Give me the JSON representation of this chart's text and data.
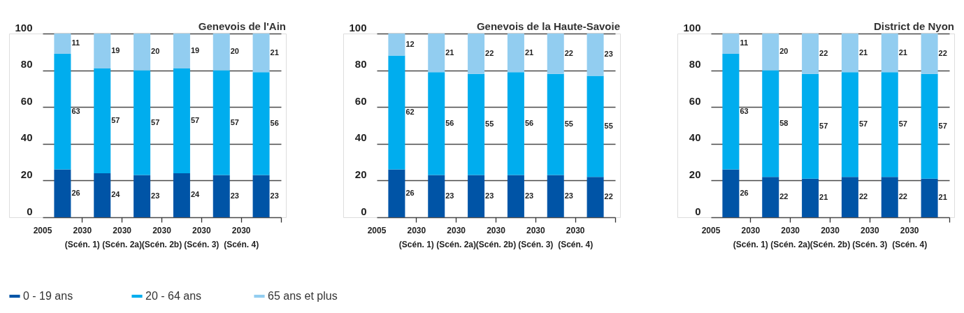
{
  "chart_data": [
    {
      "type": "bar",
      "title": "Genevois de l'Ain",
      "stacked": true,
      "categories": [
        "2005",
        "2030\n(Scén. 1)",
        "2030\n(Scén. 2a)",
        "2030\n(Scén. 2b)",
        "2030\n(Scén. 3)",
        "2030\n(Scén. 4)"
      ],
      "series": [
        {
          "name": "0 - 19 ans",
          "color": "#0054a6",
          "values": [
            26,
            24,
            23,
            24,
            23,
            23
          ]
        },
        {
          "name": "20 - 64 ans",
          "color": "#00adee",
          "values": [
            63,
            57,
            57,
            57,
            57,
            56
          ]
        },
        {
          "name": "65 ans et plus",
          "color": "#92cdf0",
          "values": [
            11,
            19,
            20,
            19,
            20,
            21
          ]
        }
      ],
      "ylim": [
        0,
        100
      ],
      "yticks": [
        0,
        20,
        40,
        60,
        80,
        100
      ],
      "grid": "y",
      "data_labels": true,
      "legend": "bottom"
    },
    {
      "type": "bar",
      "title": "Genevois de la Haute-Savoie",
      "stacked": true,
      "categories": [
        "2005",
        "2030\n(Scén. 1)",
        "2030\n(Scén. 2a)",
        "2030\n(Scén. 2b)",
        "2030\n(Scén. 3)",
        "2030\n(Scén. 4)"
      ],
      "series": [
        {
          "name": "0 - 19 ans",
          "color": "#0054a6",
          "values": [
            26,
            23,
            23,
            23,
            23,
            22
          ]
        },
        {
          "name": "20 - 64 ans",
          "color": "#00adee",
          "values": [
            62,
            56,
            55,
            56,
            55,
            55
          ]
        },
        {
          "name": "65 ans et plus",
          "color": "#92cdf0",
          "values": [
            12,
            21,
            22,
            21,
            22,
            23
          ]
        }
      ],
      "ylim": [
        0,
        100
      ],
      "yticks": [
        0,
        20,
        40,
        60,
        80,
        100
      ],
      "grid": "y",
      "data_labels": true
    },
    {
      "type": "bar",
      "title": "District de Nyon",
      "stacked": true,
      "categories": [
        "2005",
        "2030\n(Scén. 1)",
        "2030\n(Scén. 2a)",
        "2030\n(Scén. 2b)",
        "2030\n(Scén. 3)",
        "2030\n(Scén. 4)"
      ],
      "series": [
        {
          "name": "0 - 19 ans",
          "color": "#0054a6",
          "values": [
            26,
            22,
            21,
            22,
            22,
            21
          ]
        },
        {
          "name": "20 - 64 ans",
          "color": "#00adee",
          "values": [
            63,
            58,
            57,
            57,
            57,
            57
          ]
        },
        {
          "name": "65 ans et plus",
          "color": "#92cdf0",
          "values": [
            11,
            20,
            22,
            21,
            21,
            22
          ]
        }
      ],
      "ylim": [
        0,
        100
      ],
      "yticks": [
        0,
        20,
        40,
        60,
        80,
        100
      ],
      "grid": "y",
      "data_labels": true
    }
  ]
}
